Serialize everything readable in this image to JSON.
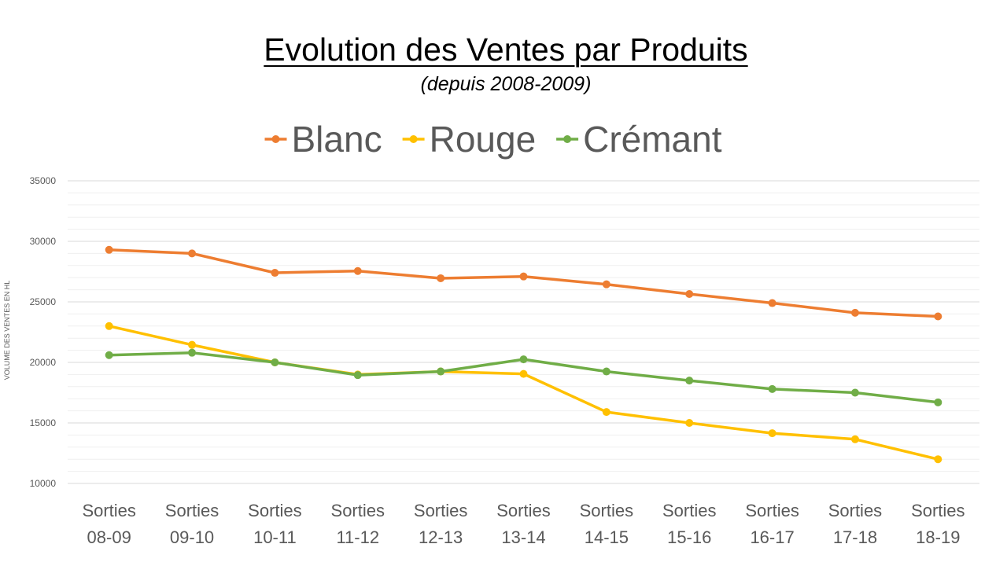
{
  "chart_data": {
    "type": "line",
    "title": "Evolution des Ventes par Produits",
    "subtitle": "(depuis 2008-2009)",
    "ylabel": "VOLUME DES VENTES EN HL",
    "xlabel": "",
    "ylim": [
      10000,
      35000
    ],
    "yticks": [
      10000,
      15000,
      20000,
      25000,
      30000,
      35000
    ],
    "grid": true,
    "legend_position": "top",
    "categories": [
      [
        "Sorties",
        "08-09"
      ],
      [
        "Sorties",
        "09-10"
      ],
      [
        "Sorties",
        "10-11"
      ],
      [
        "Sorties",
        "11-12"
      ],
      [
        "Sorties",
        "12-13"
      ],
      [
        "Sorties",
        "13-14"
      ],
      [
        "Sorties",
        "14-15"
      ],
      [
        "Sorties",
        "15-16"
      ],
      [
        "Sorties",
        "16-17"
      ],
      [
        "Sorties",
        "17-18"
      ],
      [
        "Sorties",
        "18-19"
      ]
    ],
    "series": [
      {
        "name": "Blanc",
        "color": "#ED7D31",
        "values": [
          29300,
          29000,
          27400,
          27550,
          26950,
          27100,
          26450,
          25650,
          24900,
          24100,
          23800
        ]
      },
      {
        "name": "Rouge",
        "color": "#FFC000",
        "values": [
          23000,
          21450,
          20000,
          19000,
          19250,
          19050,
          15900,
          15000,
          14150,
          13650,
          12000
        ]
      },
      {
        "name": "Crémant",
        "color": "#70AD47",
        "values": [
          20600,
          20800,
          20000,
          18950,
          19250,
          20250,
          19250,
          18500,
          17800,
          17500,
          16700
        ]
      }
    ]
  }
}
